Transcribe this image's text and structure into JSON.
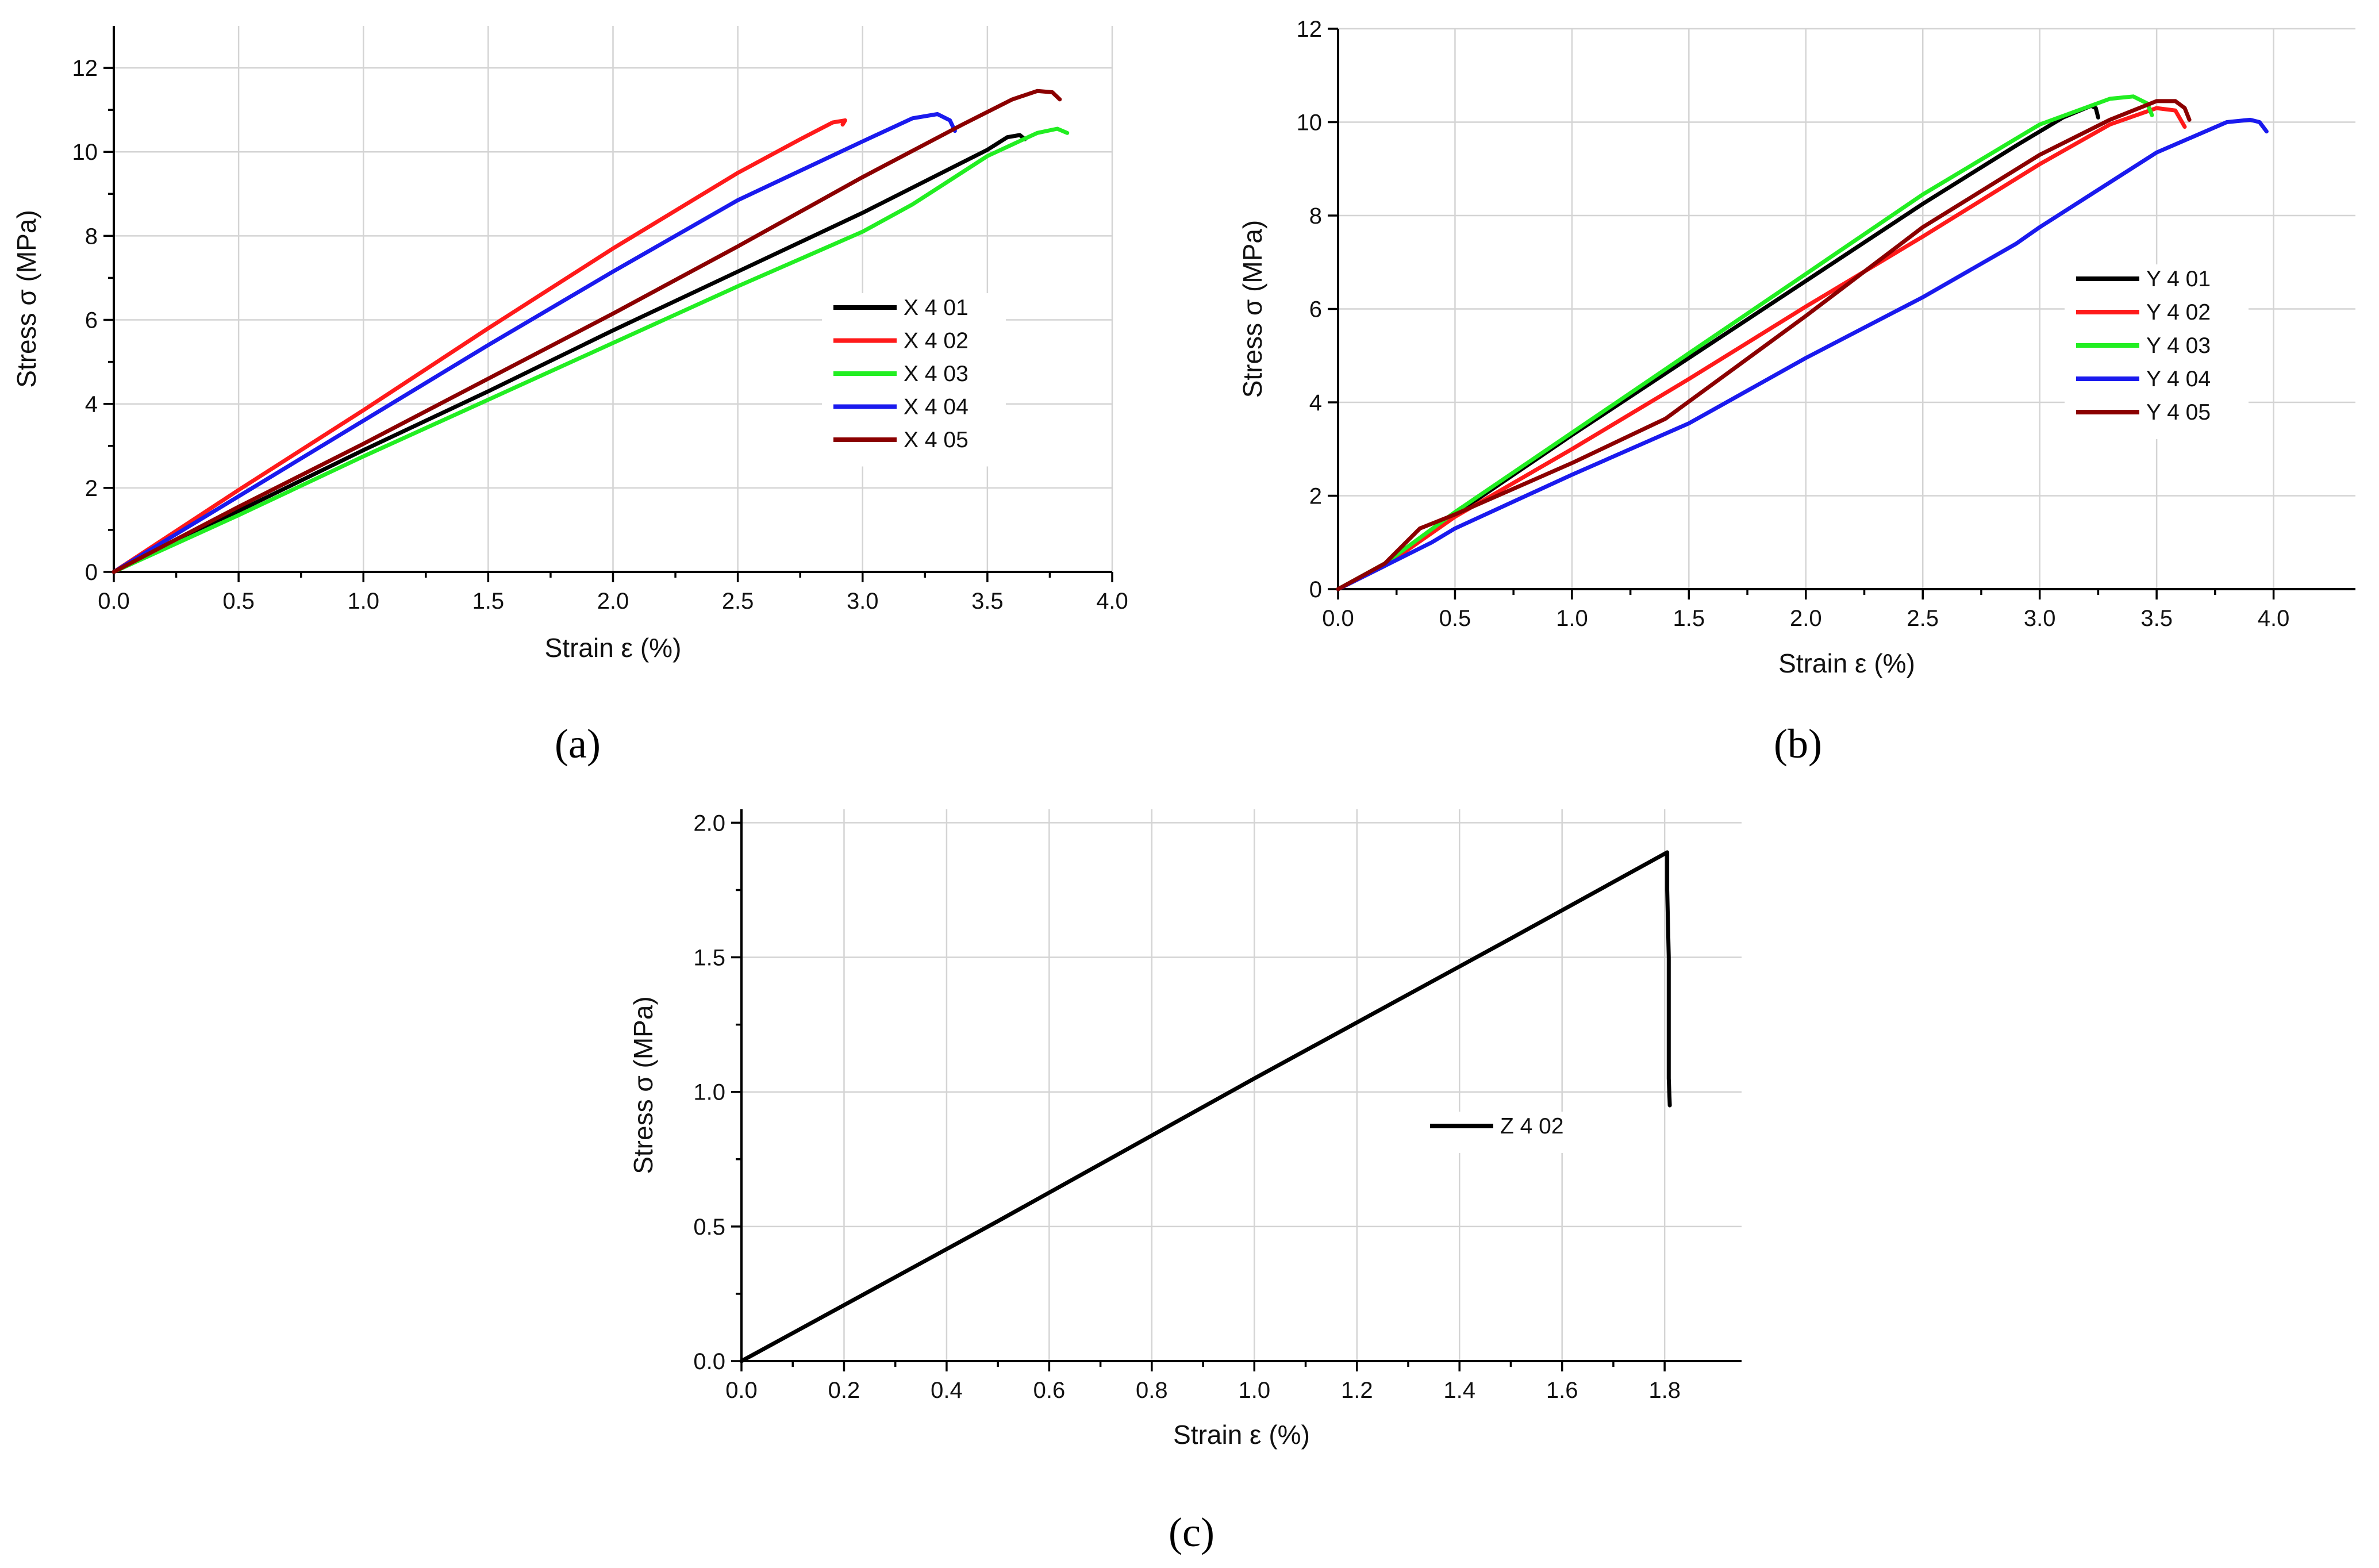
{
  "colors": {
    "black": "#000000",
    "red": "#ff1a1a",
    "green": "#22ee22",
    "blue": "#1a1aee",
    "darkred": "#8b0000"
  },
  "chart_data": [
    {
      "type": "line",
      "panel_label": "(a)",
      "xlabel": "Strain ε (%)",
      "ylabel": "Stress σ (MPa)",
      "xlim": [
        0,
        4.0
      ],
      "ylim": [
        0,
        13
      ],
      "xticks": [
        0,
        0.5,
        1.0,
        1.5,
        2.0,
        2.5,
        3.0,
        3.5,
        4.0
      ],
      "xtick_labels": [
        "0.0",
        "0.5",
        "1.0",
        "1.5",
        "2.0",
        "2.5",
        "3.0",
        "3.5",
        "4.0"
      ],
      "yticks": [
        0,
        2,
        4,
        6,
        8,
        10,
        12
      ],
      "ytick_labels": [
        "0",
        "2",
        "4",
        "6",
        "8",
        "10",
        "12"
      ],
      "grid": true,
      "legend_position": "center-right",
      "series": [
        {
          "name": "X 4 01",
          "color": "#000000",
          "points": [
            [
              0,
              0
            ],
            [
              0.5,
              1.45
            ],
            [
              1.0,
              2.9
            ],
            [
              1.5,
              4.3
            ],
            [
              2.0,
              5.75
            ],
            [
              2.5,
              7.15
            ],
            [
              3.0,
              8.55
            ],
            [
              3.35,
              9.6
            ],
            [
              3.5,
              10.05
            ],
            [
              3.58,
              10.35
            ],
            [
              3.63,
              10.4
            ],
            [
              3.65,
              10.3
            ]
          ]
        },
        {
          "name": "X 4 02",
          "color": "#ff1a1a",
          "points": [
            [
              0,
              0
            ],
            [
              0.5,
              1.95
            ],
            [
              1.0,
              3.85
            ],
            [
              1.5,
              5.8
            ],
            [
              2.0,
              7.7
            ],
            [
              2.5,
              9.5
            ],
            [
              2.75,
              10.3
            ],
            [
              2.88,
              10.7
            ],
            [
              2.93,
              10.75
            ],
            [
              2.92,
              10.65
            ]
          ]
        },
        {
          "name": "X 4 03",
          "color": "#22ee22",
          "points": [
            [
              0,
              0
            ],
            [
              0.5,
              1.35
            ],
            [
              1.0,
              2.75
            ],
            [
              1.5,
              4.1
            ],
            [
              2.0,
              5.45
            ],
            [
              2.5,
              6.8
            ],
            [
              3.0,
              8.1
            ],
            [
              3.2,
              8.75
            ],
            [
              3.5,
              9.9
            ],
            [
              3.7,
              10.45
            ],
            [
              3.78,
              10.55
            ],
            [
              3.82,
              10.45
            ]
          ]
        },
        {
          "name": "X 4 04",
          "color": "#1a1aee",
          "points": [
            [
              0,
              0
            ],
            [
              0.5,
              1.8
            ],
            [
              1.0,
              3.6
            ],
            [
              1.5,
              5.4
            ],
            [
              2.0,
              7.15
            ],
            [
              2.5,
              8.85
            ],
            [
              3.0,
              10.25
            ],
            [
              3.2,
              10.8
            ],
            [
              3.3,
              10.9
            ],
            [
              3.35,
              10.75
            ],
            [
              3.37,
              10.5
            ]
          ]
        },
        {
          "name": "X 4 05",
          "color": "#8b0000",
          "points": [
            [
              0,
              0
            ],
            [
              0.5,
              1.55
            ],
            [
              1.0,
              3.05
            ],
            [
              1.5,
              4.6
            ],
            [
              2.0,
              6.15
            ],
            [
              2.5,
              7.75
            ],
            [
              3.0,
              9.4
            ],
            [
              3.4,
              10.65
            ],
            [
              3.6,
              11.25
            ],
            [
              3.7,
              11.45
            ],
            [
              3.76,
              11.42
            ],
            [
              3.79,
              11.25
            ]
          ]
        }
      ]
    },
    {
      "type": "line",
      "panel_label": "(b)",
      "xlabel": "Strain ε (%)",
      "ylabel": "Stress σ (MPa)",
      "xlim": [
        0,
        4.35
      ],
      "ylim": [
        0,
        12
      ],
      "xticks": [
        0,
        0.5,
        1.0,
        1.5,
        2.0,
        2.5,
        3.0,
        3.5,
        4.0
      ],
      "xtick_labels": [
        "0.0",
        "0.5",
        "1.0",
        "1.5",
        "2.0",
        "2.5",
        "3.0",
        "3.5",
        "4.0"
      ],
      "yticks": [
        0,
        2,
        4,
        6,
        8,
        10,
        12
      ],
      "ytick_labels": [
        "0",
        "2",
        "4",
        "6",
        "8",
        "10",
        "12"
      ],
      "grid": true,
      "legend_position": "center-right",
      "series": [
        {
          "name": "Y 4 01",
          "color": "#000000",
          "points": [
            [
              0,
              0
            ],
            [
              0.2,
              0.5
            ],
            [
              0.5,
              1.6
            ],
            [
              1.0,
              3.3
            ],
            [
              1.5,
              4.95
            ],
            [
              2.0,
              6.6
            ],
            [
              2.5,
              8.25
            ],
            [
              2.9,
              9.5
            ],
            [
              3.1,
              10.1
            ],
            [
              3.22,
              10.35
            ],
            [
              3.24,
              10.3
            ],
            [
              3.25,
              10.1
            ]
          ]
        },
        {
          "name": "Y 4 02",
          "color": "#ff1a1a",
          "points": [
            [
              0,
              0
            ],
            [
              0.2,
              0.5
            ],
            [
              0.5,
              1.55
            ],
            [
              1.0,
              3.0
            ],
            [
              1.5,
              4.5
            ],
            [
              2.0,
              6.05
            ],
            [
              2.5,
              7.55
            ],
            [
              3.0,
              9.1
            ],
            [
              3.3,
              9.95
            ],
            [
              3.5,
              10.3
            ],
            [
              3.58,
              10.25
            ],
            [
              3.62,
              9.9
            ]
          ]
        },
        {
          "name": "Y 4 03",
          "color": "#22ee22",
          "points": [
            [
              0,
              0
            ],
            [
              0.2,
              0.55
            ],
            [
              0.5,
              1.65
            ],
            [
              1.0,
              3.35
            ],
            [
              1.5,
              5.05
            ],
            [
              2.0,
              6.75
            ],
            [
              2.5,
              8.45
            ],
            [
              3.0,
              9.95
            ],
            [
              3.3,
              10.5
            ],
            [
              3.4,
              10.55
            ],
            [
              3.46,
              10.4
            ],
            [
              3.48,
              10.15
            ]
          ]
        },
        {
          "name": "Y 4 04",
          "color": "#1a1aee",
          "points": [
            [
              0,
              0
            ],
            [
              0.2,
              0.5
            ],
            [
              0.4,
              1.0
            ],
            [
              0.5,
              1.3
            ],
            [
              1.0,
              2.45
            ],
            [
              1.5,
              3.55
            ],
            [
              2.0,
              4.95
            ],
            [
              2.5,
              6.25
            ],
            [
              2.9,
              7.4
            ],
            [
              3.0,
              7.75
            ],
            [
              3.5,
              9.35
            ],
            [
              3.8,
              10.0
            ],
            [
              3.9,
              10.05
            ],
            [
              3.94,
              10.0
            ],
            [
              3.97,
              9.8
            ]
          ]
        },
        {
          "name": "Y 4 05",
          "color": "#8b0000",
          "points": [
            [
              0,
              0
            ],
            [
              0.2,
              0.55
            ],
            [
              0.35,
              1.3
            ],
            [
              0.5,
              1.6
            ],
            [
              1.0,
              2.7
            ],
            [
              1.4,
              3.65
            ],
            [
              2.0,
              5.85
            ],
            [
              2.5,
              7.75
            ],
            [
              3.0,
              9.3
            ],
            [
              3.3,
              10.05
            ],
            [
              3.5,
              10.45
            ],
            [
              3.58,
              10.45
            ],
            [
              3.62,
              10.3
            ],
            [
              3.64,
              10.05
            ]
          ]
        }
      ]
    },
    {
      "type": "line",
      "panel_label": "(c)",
      "xlabel": "Strain ε (%)",
      "ylabel": "Stress σ (MPa)",
      "xlim": [
        0,
        1.95
      ],
      "ylim": [
        0,
        2.05
      ],
      "xticks": [
        0,
        0.2,
        0.4,
        0.6,
        0.8,
        1.0,
        1.2,
        1.4,
        1.6,
        1.8
      ],
      "xtick_labels": [
        "0.0",
        "0.2",
        "0.4",
        "0.6",
        "0.8",
        "1.0",
        "1.2",
        "1.4",
        "1.6",
        "1.8"
      ],
      "yticks": [
        0,
        0.5,
        1.0,
        1.5,
        2.0
      ],
      "ytick_labels": [
        "0.0",
        "0.5",
        "1.0",
        "1.5",
        "2.0"
      ],
      "grid": true,
      "legend_position": "center-right",
      "series": [
        {
          "name": "Z 4 02",
          "color": "#000000",
          "points": [
            [
              0,
              0
            ],
            [
              0.5,
              0.52
            ],
            [
              1.0,
              1.05
            ],
            [
              1.5,
              1.57
            ],
            [
              1.805,
              1.89
            ],
            [
              1.805,
              1.75
            ],
            [
              1.808,
              1.5
            ],
            [
              1.808,
              1.05
            ],
            [
              1.81,
              0.95
            ]
          ]
        }
      ]
    }
  ]
}
